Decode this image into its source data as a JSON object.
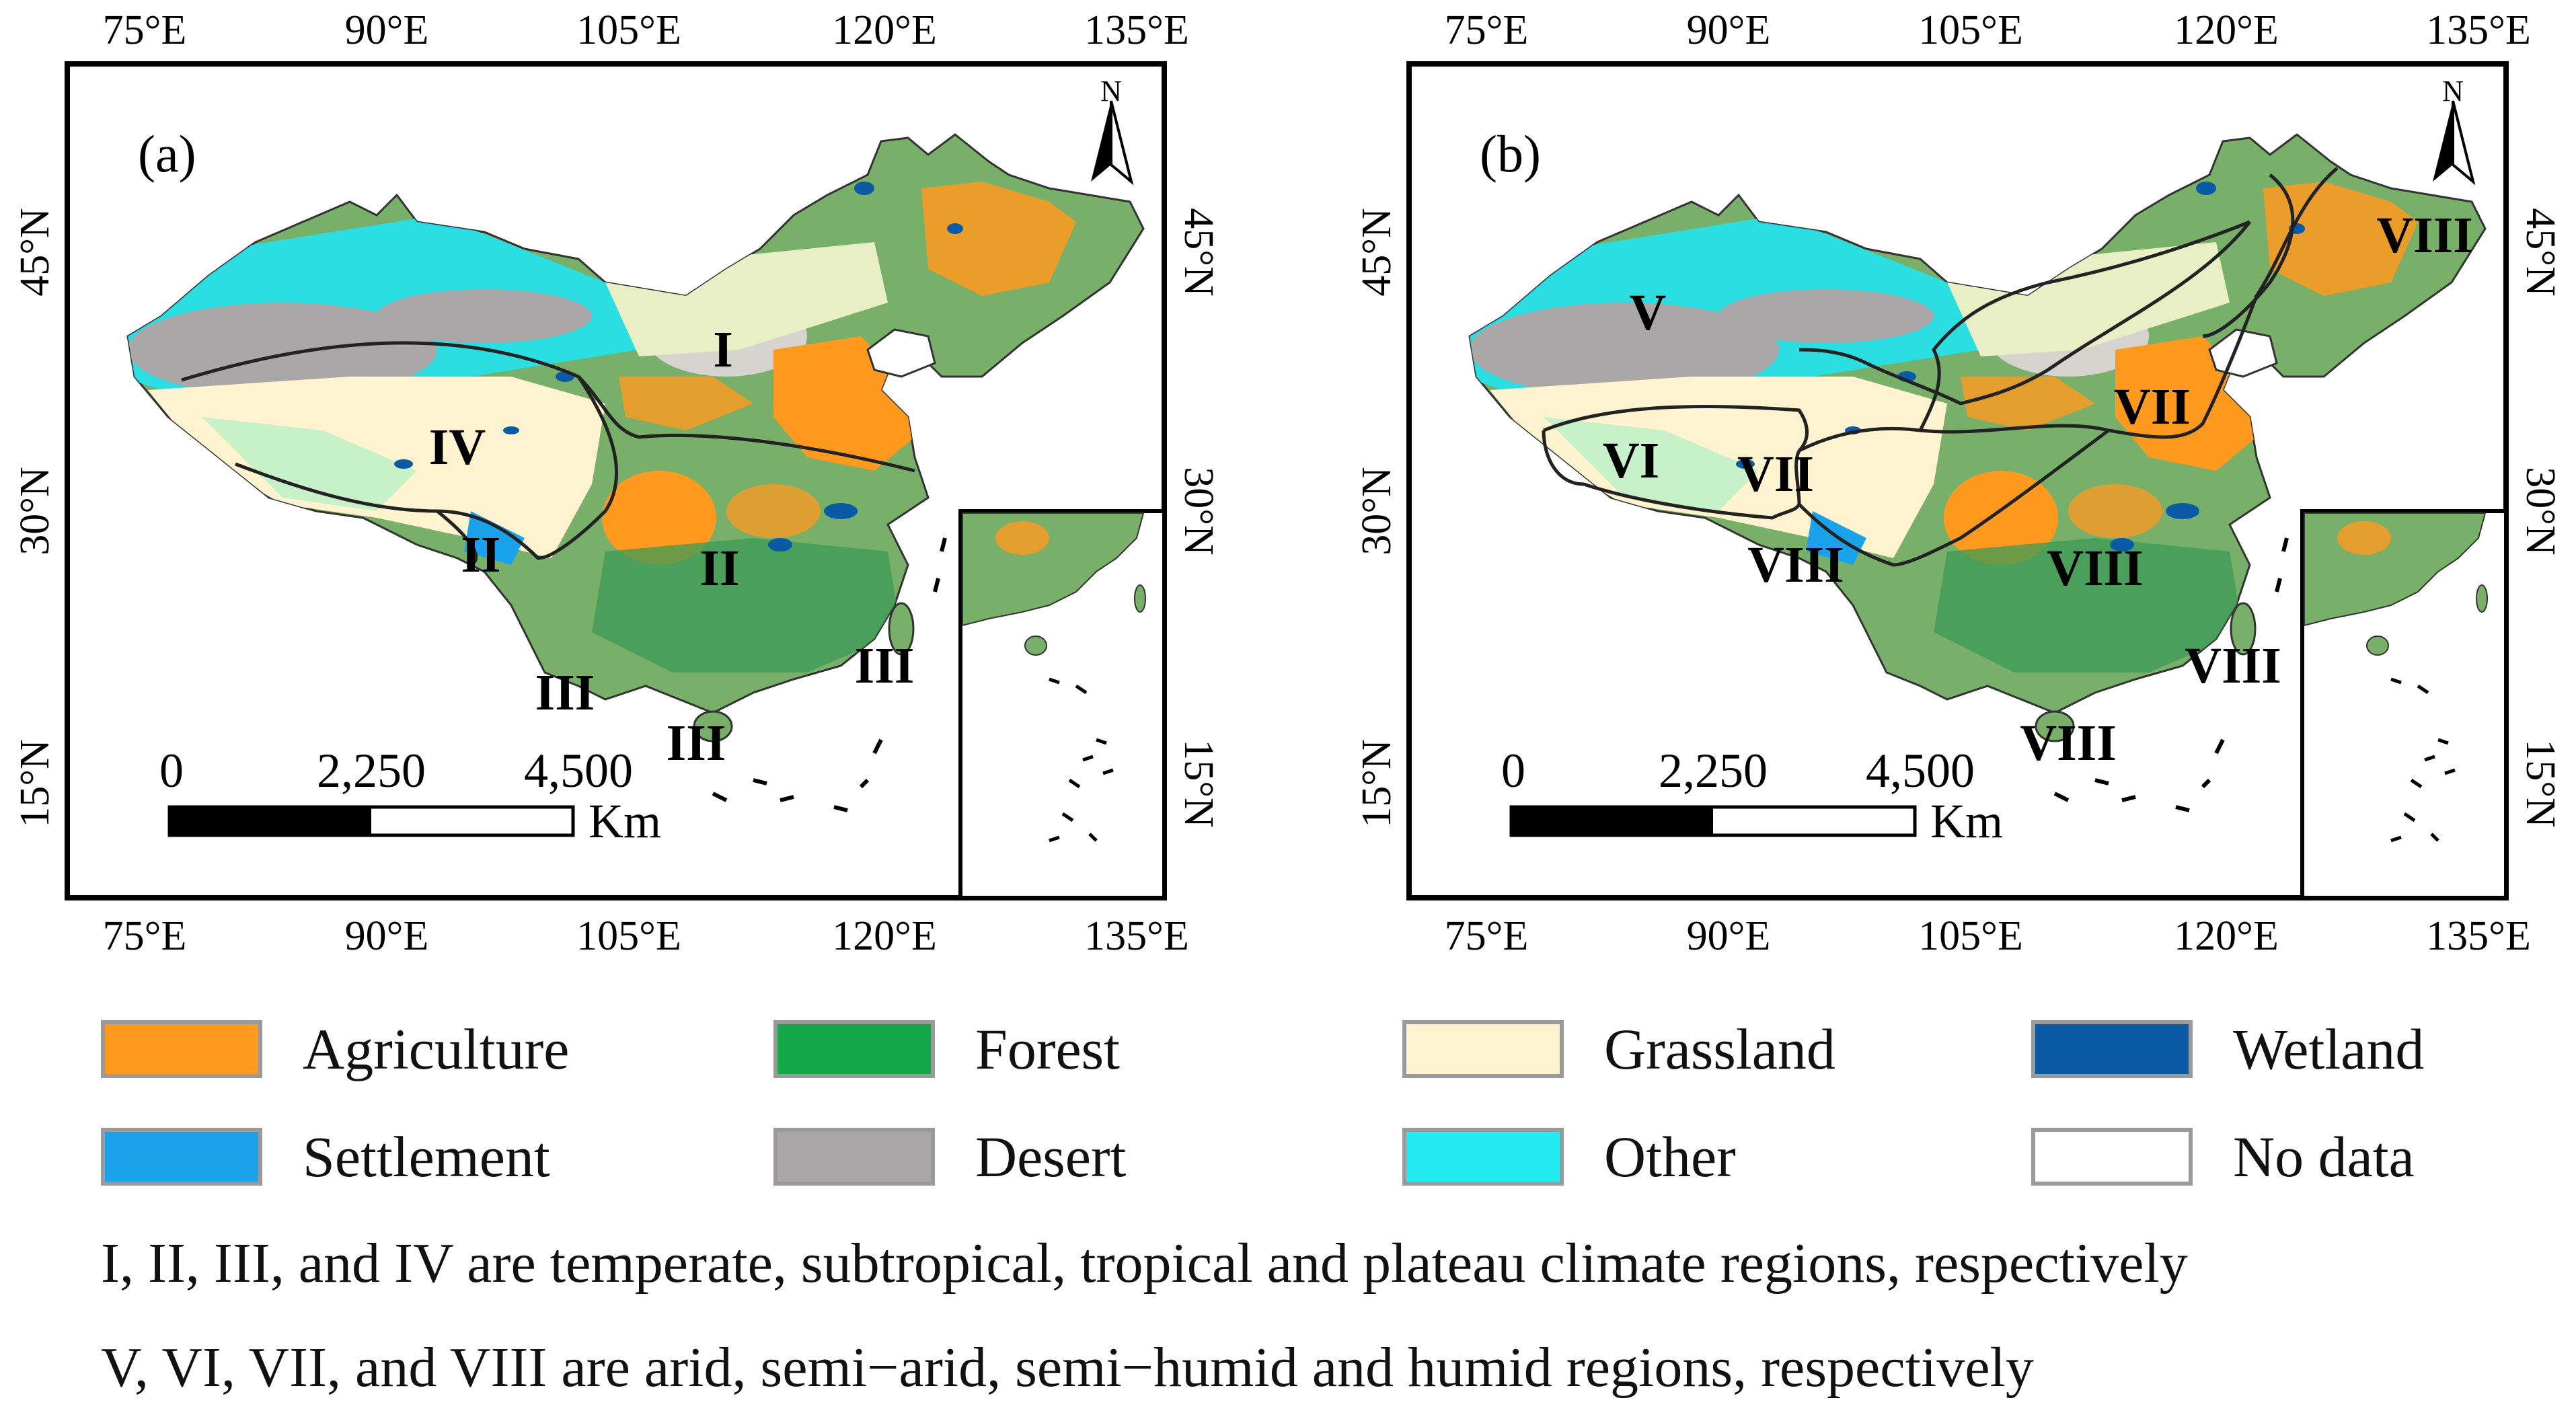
{
  "panels": [
    {
      "label": "(a)",
      "top_lon": [
        "75°E",
        "90°E",
        "105°E",
        "120°E",
        "135°E"
      ],
      "bottom_lon": [
        "75°E",
        "90°E",
        "105°E",
        "120°E",
        "135°E"
      ],
      "lat": [
        "45°N",
        "30°N",
        "15°N"
      ],
      "regions": [
        "I",
        "II",
        "IV",
        "II",
        "III",
        "III",
        "III"
      ],
      "north": "N",
      "scale": {
        "ticks": [
          "0",
          "2,250",
          "4,500"
        ],
        "unit": "Km"
      }
    },
    {
      "label": "(b)",
      "top_lon": [
        "75°E",
        "90°E",
        "105°E",
        "120°E",
        "135°E"
      ],
      "bottom_lon": [
        "75°E",
        "90°E",
        "105°E",
        "120°E",
        "135°E"
      ],
      "lat": [
        "45°N",
        "30°N",
        "15°N"
      ],
      "regions": [
        "V",
        "VIII",
        "VII",
        "VI",
        "VII",
        "VIII",
        "VIII",
        "VIII",
        "VIII"
      ],
      "north": "N",
      "scale": {
        "ticks": [
          "0",
          "2,250",
          "4,500"
        ],
        "unit": "Km"
      }
    }
  ],
  "legend": [
    {
      "label": "Agriculture",
      "color": "#ff9a1f"
    },
    {
      "label": "Forest",
      "color": "#14a84a"
    },
    {
      "label": "Grassland",
      "color": "#fff3d0"
    },
    {
      "label": "Wetland",
      "color": "#0b5aa6"
    },
    {
      "label": "Settlement",
      "color": "#1aa3ea"
    },
    {
      "label": "Desert",
      "color": "#a9a7a7"
    },
    {
      "label": "Other",
      "color": "#22ecf2"
    },
    {
      "label": "No data",
      "color": "#ffffff"
    }
  ],
  "captions": [
    "I, II, III, and IV are temperate, subtropical, tropical and plateau climate regions, respectively",
    "V, VI, VII, and VIII are arid, semi−arid, semi−humid and humid regions, respectively"
  ]
}
